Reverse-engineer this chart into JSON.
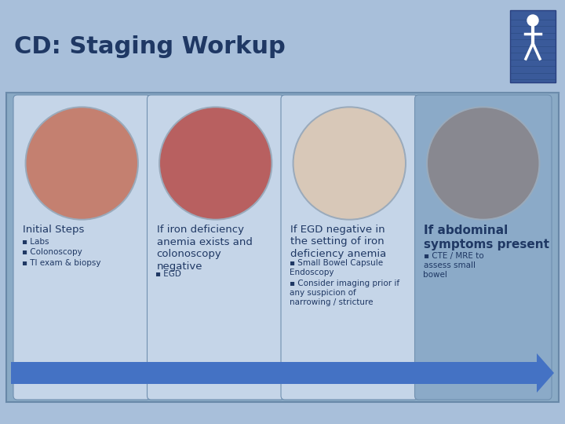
{
  "title": "CD: Staging Workup",
  "title_color": "#1F3864",
  "title_fontsize": 22,
  "bg_color": "#A8BFDA",
  "card_bg_light": "#C5D5E8",
  "card_bg_dark": "#8BAAC8",
  "arrow_color": "#4472C4",
  "text_dark": "#1F3864",
  "text_body": "#1F3864",
  "icon_bg": "#3A5A9A",
  "body_bg": "#8AAAC5",
  "cards": [
    {
      "title": "Initial Steps",
      "title_bold": false,
      "title_size": 9.5,
      "bullets": [
        "Labs",
        "Colonoscopy",
        "TI exam & biopsy"
      ],
      "dark": false,
      "circle_color": "#C48070"
    },
    {
      "title": "If iron deficiency\nanemia exists and\ncolonoscopy\nnegative",
      "title_bold": false,
      "title_size": 9.5,
      "bullets": [
        "EGD"
      ],
      "dark": false,
      "circle_color": "#B86060"
    },
    {
      "title": "If EGD negative in\nthe setting of iron\ndeficiency anemia",
      "title_bold": false,
      "title_size": 9.5,
      "bullets": [
        "Small Bowel Capsule\nEndoscopy",
        "Consider imaging prior if\nany suspicion of\nnarrowing / stricture"
      ],
      "dark": false,
      "circle_color": "#D8C8B8"
    },
    {
      "title": "If abdominal\nsymptoms present",
      "title_bold": true,
      "title_size": 11,
      "bullets": [
        "CTE / MRE to\nassess small\nbowel"
      ],
      "dark": true,
      "circle_color": "#888890"
    }
  ]
}
